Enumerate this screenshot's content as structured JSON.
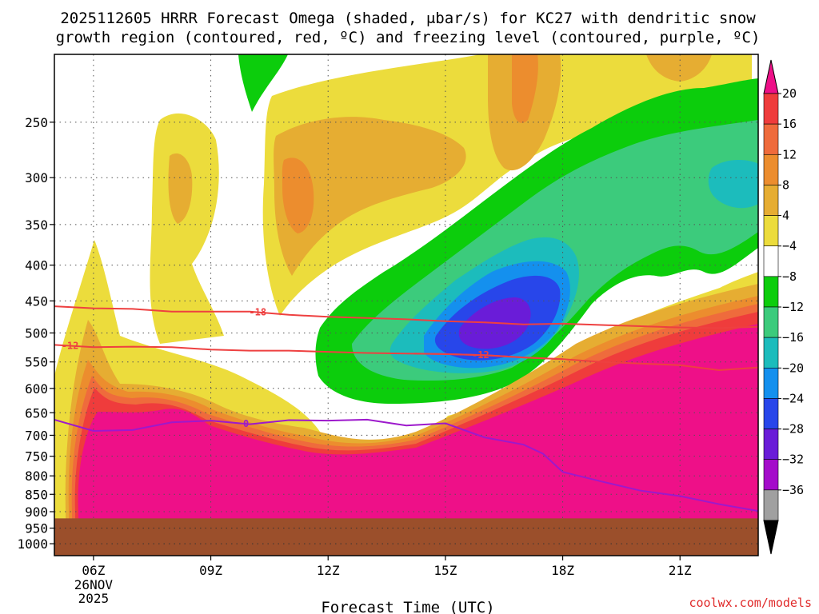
{
  "title": {
    "line1": "2025112605 HRRR Forecast Omega (shaded, μbar/s) for KC27 with dendritic snow",
    "line2": "growth region (contoured, red, ºC) and freezing level (contoured, purple, ºC)"
  },
  "credit": "coolwx.com/models",
  "chart_data": {
    "type": "heatmap",
    "xlabel": "Forecast Time (UTC)",
    "ylabel": "",
    "x_ticks": [
      {
        "hour": 6,
        "label": "06Z",
        "sub1": "26NOV",
        "sub2": "2025"
      },
      {
        "hour": 9,
        "label": "09Z",
        "sub1": "",
        "sub2": ""
      },
      {
        "hour": 12,
        "label": "12Z",
        "sub1": "",
        "sub2": ""
      },
      {
        "hour": 15,
        "label": "15Z",
        "sub1": "",
        "sub2": ""
      },
      {
        "hour": 18,
        "label": "18Z",
        "sub1": "",
        "sub2": ""
      },
      {
        "hour": 21,
        "label": "21Z",
        "sub1": "",
        "sub2": ""
      }
    ],
    "y_ticks": [
      {
        "p": 250,
        "label": "250"
      },
      {
        "p": 300,
        "label": "300"
      },
      {
        "p": 350,
        "label": "350"
      },
      {
        "p": 400,
        "label": "400"
      },
      {
        "p": 450,
        "label": "450"
      },
      {
        "p": 500,
        "label": "500"
      },
      {
        "p": 550,
        "label": "550"
      },
      {
        "p": 600,
        "label": "600"
      },
      {
        "p": 650,
        "label": "650"
      },
      {
        "p": 700,
        "label": "700"
      },
      {
        "p": 750,
        "label": "750"
      },
      {
        "p": 800,
        "label": "800"
      },
      {
        "p": 850,
        "label": "850"
      },
      {
        "p": 900,
        "label": "900"
      },
      {
        "p": 950,
        "label": "950"
      },
      {
        "p": 1000,
        "label": "1000"
      }
    ],
    "x_range_hours": [
      5,
      23
    ],
    "y_range_hpa": [
      200,
      1040
    ],
    "y_scale": "log",
    "grid": true,
    "ground_level_hpa": 920,
    "ground_color": "#9b4f2b",
    "colorbar": {
      "labels": [
        "20",
        "16",
        "12",
        "8",
        "4",
        "−4",
        "−8",
        "−12",
        "−16",
        "−20",
        "−24",
        "−28",
        "−32",
        "−36"
      ],
      "colors": [
        "#ee1088",
        "#ef3c3c",
        "#ef6b3c",
        "#ec8d2e",
        "#e6ad32",
        "#ecdc3c",
        "#ffffff",
        "#0ccd0c",
        "#3ccb7c",
        "#1cbcbc",
        "#1490ee",
        "#2846ea",
        "#6a1cd8",
        "#a40cca",
        "#a0a0a0"
      ],
      "top_color": "#ee1088",
      "bottom_color": "#000000"
    },
    "series": [
      {
        "name": "",
        "label": "-18",
        "color": "#ee4040",
        "label_at": 10.2,
        "points": [
          [
            5,
            458
          ],
          [
            6,
            461
          ],
          [
            7,
            462
          ],
          [
            8,
            466
          ],
          [
            9,
            466
          ],
          [
            10,
            466
          ],
          [
            11,
            471
          ],
          [
            12,
            474
          ],
          [
            13,
            476
          ],
          [
            14,
            478
          ],
          [
            15,
            481
          ],
          [
            16,
            483
          ],
          [
            17,
            486
          ],
          [
            18,
            485
          ],
          [
            19,
            487
          ],
          [
            20,
            489
          ],
          [
            21,
            491
          ],
          [
            22,
            492
          ],
          [
            23,
            490
          ]
        ]
      },
      {
        "name": "",
        "label": "-12",
        "color": "#ee4040",
        "label_at": 5.4,
        "points": [
          [
            5,
            520
          ],
          [
            6,
            524
          ],
          [
            7,
            523
          ],
          [
            8,
            524
          ],
          [
            9,
            528
          ],
          [
            10,
            530
          ],
          [
            11,
            530
          ],
          [
            12,
            532
          ],
          [
            13,
            534
          ],
          [
            14,
            535
          ],
          [
            15,
            536
          ],
          [
            16,
            538
          ],
          [
            17,
            542
          ],
          [
            18,
            545
          ],
          [
            19,
            550
          ],
          [
            20,
            553
          ],
          [
            21,
            556
          ],
          [
            22,
            565
          ],
          [
            23,
            560
          ]
        ]
      },
      {
        "name": "",
        "label": "-12",
        "color": "#ee4040",
        "label_at": 15.9,
        "points": [
          [
            14.2,
            535
          ],
          [
            15,
            536
          ],
          [
            16,
            538
          ],
          [
            17,
            542
          ],
          [
            18,
            545
          ]
        ]
      },
      {
        "name": "",
        "label": "0",
        "color": "#9d19cc",
        "label_at": 9.9,
        "points": [
          [
            5,
            665
          ],
          [
            6,
            690
          ],
          [
            7,
            688
          ],
          [
            8,
            671
          ],
          [
            9,
            667
          ],
          [
            10,
            675
          ],
          [
            11,
            666
          ],
          [
            12,
            667
          ],
          [
            13,
            665
          ],
          [
            14,
            678
          ],
          [
            15,
            673
          ],
          [
            16,
            705
          ],
          [
            17,
            722
          ],
          [
            17.5,
            744
          ],
          [
            18,
            790
          ],
          [
            19,
            815
          ],
          [
            20,
            840
          ],
          [
            21,
            855
          ],
          [
            22,
            878
          ],
          [
            23,
            898
          ]
        ]
      }
    ]
  }
}
